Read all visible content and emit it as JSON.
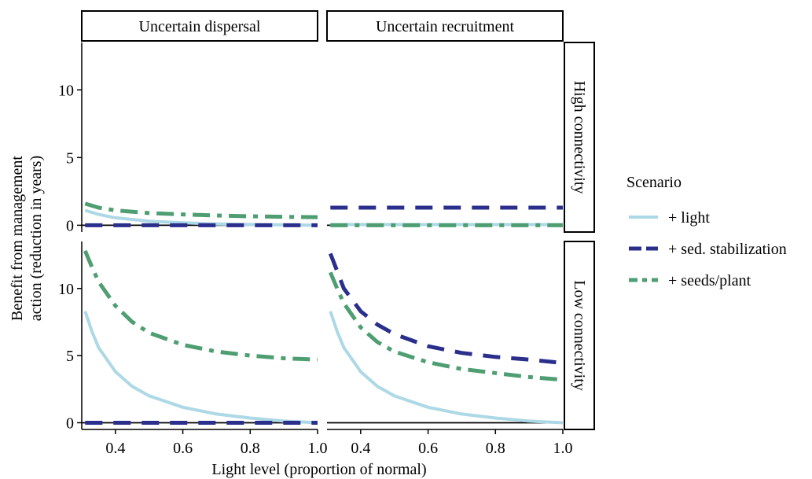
{
  "chart_data": {
    "type": "line",
    "xlabel": "Light level (proportion of normal)",
    "ylabel_line1": "Benefit from management",
    "ylabel_line2": "action (reduction in years)",
    "xlim": [
      0.3,
      1.0
    ],
    "ylim": [
      -0.5,
      13.5
    ],
    "xticks": [
      0.4,
      0.6,
      0.8,
      1.0
    ],
    "xtick_labels": [
      "0.4",
      "0.6",
      "0.8",
      "1.0"
    ],
    "yticks": [
      0,
      5,
      10
    ],
    "ytick_labels": [
      "0",
      "5",
      "10"
    ],
    "columns": [
      "Uncertain dispersal",
      "Uncertain recruitment"
    ],
    "rows": [
      "High connectivity",
      "Low connectivity"
    ],
    "reference_line_y": 0,
    "legend": {
      "title": "Scenario",
      "position": "right",
      "entries": [
        {
          "label": "+ light",
          "color": "#add8e6",
          "dash": "solid"
        },
        {
          "label": "+ sed. stabilization",
          "color": "#2b2f8c",
          "dash": "dashed"
        },
        {
          "label": "+ seeds/plant",
          "color": "#4e9e72",
          "dash": "dashdot"
        }
      ]
    },
    "panels": [
      {
        "column": "Uncertain dispersal",
        "row": "High connectivity",
        "series": [
          {
            "name": "+ light",
            "x": [
              0.31,
              0.35,
              0.4,
              0.5,
              0.6,
              0.7,
              0.8,
              0.9,
              1.0
            ],
            "y": [
              1.1,
              0.8,
              0.55,
              0.3,
              0.18,
              0.1,
              0.06,
              0.03,
              0.0
            ]
          },
          {
            "name": "+ sed. stabilization",
            "x": [
              0.31,
              1.0
            ],
            "y": [
              0.0,
              0.0
            ]
          },
          {
            "name": "+ seeds/plant",
            "x": [
              0.31,
              0.35,
              0.4,
              0.5,
              0.6,
              0.7,
              0.8,
              0.9,
              1.0
            ],
            "y": [
              1.6,
              1.3,
              1.1,
              0.9,
              0.8,
              0.72,
              0.66,
              0.62,
              0.6
            ]
          }
        ]
      },
      {
        "column": "Uncertain recruitment",
        "row": "High connectivity",
        "series": [
          {
            "name": "+ light",
            "x": [
              0.31,
              1.0
            ],
            "y": [
              0.05,
              0.05
            ]
          },
          {
            "name": "+ sed. stabilization",
            "x": [
              0.31,
              1.0
            ],
            "y": [
              1.3,
              1.3
            ]
          },
          {
            "name": "+ seeds/plant",
            "x": [
              0.31,
              1.0
            ],
            "y": [
              0.0,
              0.0
            ]
          }
        ]
      },
      {
        "column": "Uncertain dispersal",
        "row": "Low connectivity",
        "series": [
          {
            "name": "+ light",
            "x": [
              0.31,
              0.33,
              0.35,
              0.4,
              0.45,
              0.5,
              0.6,
              0.7,
              0.8,
              0.9,
              1.0
            ],
            "y": [
              8.3,
              6.8,
              5.6,
              3.8,
              2.7,
              2.0,
              1.15,
              0.65,
              0.35,
              0.12,
              0.0
            ]
          },
          {
            "name": "+ sed. stabilization",
            "x": [
              0.31,
              1.0
            ],
            "y": [
              0.0,
              0.0
            ]
          },
          {
            "name": "+ seeds/plant",
            "x": [
              0.31,
              0.33,
              0.35,
              0.4,
              0.45,
              0.5,
              0.6,
              0.7,
              0.8,
              0.9,
              1.0
            ],
            "y": [
              12.8,
              11.6,
              10.5,
              8.7,
              7.5,
              6.7,
              5.8,
              5.3,
              5.0,
              4.8,
              4.7
            ]
          }
        ]
      },
      {
        "column": "Uncertain recruitment",
        "row": "Low connectivity",
        "series": [
          {
            "name": "+ light",
            "x": [
              0.31,
              0.33,
              0.35,
              0.4,
              0.45,
              0.5,
              0.6,
              0.7,
              0.8,
              0.9,
              1.0
            ],
            "y": [
              8.3,
              6.8,
              5.6,
              3.8,
              2.7,
              2.0,
              1.15,
              0.65,
              0.35,
              0.12,
              0.0
            ]
          },
          {
            "name": "+ sed. stabilization",
            "x": [
              0.31,
              0.33,
              0.35,
              0.4,
              0.45,
              0.5,
              0.6,
              0.7,
              0.8,
              0.9,
              0.98
            ],
            "y": [
              12.6,
              11.3,
              10.0,
              8.3,
              7.3,
              6.6,
              5.7,
              5.2,
              4.9,
              4.7,
              4.5
            ]
          },
          {
            "name": "+ seeds/plant",
            "x": [
              0.31,
              0.33,
              0.35,
              0.4,
              0.45,
              0.5,
              0.6,
              0.7,
              0.8,
              0.9,
              1.0
            ],
            "y": [
              11.2,
              10.0,
              8.9,
              7.1,
              6.0,
              5.3,
              4.5,
              4.0,
              3.7,
              3.4,
              3.2
            ]
          }
        ]
      }
    ]
  }
}
